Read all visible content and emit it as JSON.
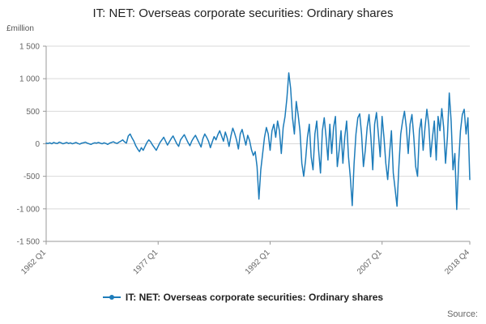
{
  "header": {
    "title": "IT: NET: Overseas corporate securities: Ordinary shares"
  },
  "chart_data": {
    "type": "line",
    "title": "IT: NET: Overseas corporate securities: Ordinary shares",
    "xlabel": "",
    "ylabel": "£million",
    "ylim": [
      -1500,
      1500
    ],
    "yticks": [
      1500,
      1000,
      500,
      0,
      -500,
      -1000,
      -1500
    ],
    "ytick_labels": [
      "1 500",
      "1 000",
      "500",
      "0",
      "-500",
      "-1 000",
      "-1 500"
    ],
    "xtick_labels": [
      "1962 Q1",
      "1977 Q1",
      "1992 Q1",
      "2007 Q1",
      "2018 Q4"
    ],
    "xtick_indices": [
      0,
      60,
      120,
      180,
      227
    ],
    "x_start": "1962 Q1",
    "x_end": "2018 Q4",
    "frequency": "quarterly",
    "grid": "horizontal",
    "legend_position": "bottom",
    "line_color": "#1d7cba",
    "axis_color": "#999999",
    "grid_color": "#d9d9d9",
    "series": [
      {
        "name": "IT: NET: Overseas corporate securities: Ordinary shares",
        "values": [
          10,
          5,
          15,
          0,
          20,
          10,
          5,
          25,
          15,
          0,
          10,
          20,
          5,
          15,
          0,
          10,
          20,
          5,
          -5,
          10,
          15,
          25,
          10,
          0,
          -10,
          5,
          15,
          10,
          20,
          10,
          0,
          15,
          5,
          -10,
          10,
          20,
          30,
          15,
          5,
          25,
          40,
          60,
          30,
          10,
          120,
          150,
          90,
          40,
          -30,
          -80,
          -120,
          -60,
          -100,
          -40,
          20,
          60,
          30,
          -20,
          -60,
          -100,
          -40,
          20,
          60,
          100,
          40,
          -20,
          30,
          80,
          120,
          60,
          0,
          -40,
          60,
          100,
          140,
          80,
          20,
          -30,
          40,
          90,
          130,
          70,
          10,
          -50,
          80,
          150,
          100,
          40,
          -60,
          30,
          110,
          60,
          140,
          200,
          120,
          40,
          180,
          90,
          -40,
          120,
          240,
          160,
          60,
          -80,
          150,
          220,
          100,
          -20,
          130,
          50,
          -90,
          -180,
          -120,
          -350,
          -850,
          -400,
          -150,
          100,
          250,
          150,
          -100,
          200,
          300,
          100,
          350,
          200,
          -150,
          250,
          420,
          700,
          1090,
          850,
          400,
          150,
          650,
          450,
          200,
          -300,
          -500,
          -250,
          100,
          300,
          -200,
          -400,
          150,
          350,
          -100,
          -450,
          200,
          400,
          100,
          -250,
          300,
          -150,
          250,
          420,
          -350,
          -100,
          200,
          -300,
          100,
          350,
          -200,
          -520,
          -950,
          -300,
          150,
          400,
          460,
          150,
          -350,
          -100,
          250,
          450,
          100,
          -400,
          300,
          480,
          150,
          -200,
          420,
          100,
          -300,
          -550,
          -150,
          200,
          -450,
          -700,
          -960,
          -350,
          150,
          350,
          500,
          250,
          -150,
          300,
          450,
          100,
          -350,
          -500,
          200,
          380,
          -100,
          250,
          530,
          300,
          -200,
          100,
          350,
          -250,
          420,
          200,
          540,
          250,
          -300,
          100,
          780,
          350,
          -400,
          -150,
          -1010,
          -300,
          200,
          450,
          530,
          150,
          400,
          -550
        ]
      }
    ]
  },
  "legend": {
    "label": "IT: NET: Overseas corporate securities: Ordinary shares"
  },
  "footer": {
    "source_label": "Source:"
  }
}
